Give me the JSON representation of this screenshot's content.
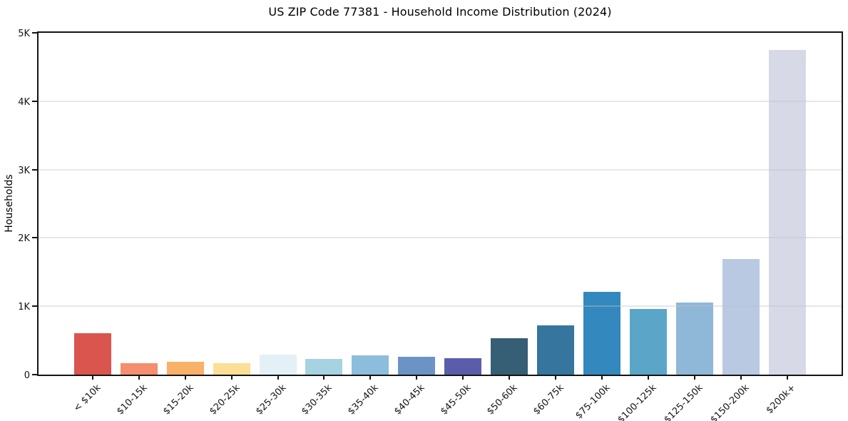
{
  "chart_data": {
    "type": "bar",
    "title": "US ZIP Code 77381 - Household Income Distribution (2024)",
    "xlabel": "",
    "ylabel": "Households",
    "categories": [
      "< $10k",
      "$10-15k",
      "$15-20k",
      "$20-25k",
      "$25-30k",
      "$30-35k",
      "$35-40k",
      "$40-45k",
      "$45-50k",
      "$50-60k",
      "$60-75k",
      "$75-100k",
      "$100-125k",
      "$125-150k",
      "$150-200k",
      "$200k+"
    ],
    "values": [
      610,
      170,
      190,
      170,
      295,
      230,
      285,
      265,
      245,
      535,
      720,
      1215,
      960,
      1050,
      1695,
      4750
    ],
    "bar_colors": [
      "#d9554d",
      "#f58e6e",
      "#f8b168",
      "#fcdf94",
      "#e3f0f6",
      "#a6d2e2",
      "#8dbddc",
      "#6b93c6",
      "#5b5dab",
      "#365e75",
      "#35759e",
      "#3389bd",
      "#5ba6c8",
      "#8fb7d8",
      "#b9c9e2",
      "#d7d9e6"
    ],
    "ylim": [
      0,
      5000
    ],
    "ytick_values": [
      0,
      1000,
      2000,
      3000,
      4000,
      5000
    ],
    "ytick_labels": [
      "0",
      "1K",
      "2K",
      "3K",
      "4K",
      "5K"
    ],
    "grid": "horizontal",
    "gridline_color": "rgba(190,196,206,0.40)",
    "axis_color": "#141414",
    "background_color": "#ffffff",
    "legend": "none"
  }
}
